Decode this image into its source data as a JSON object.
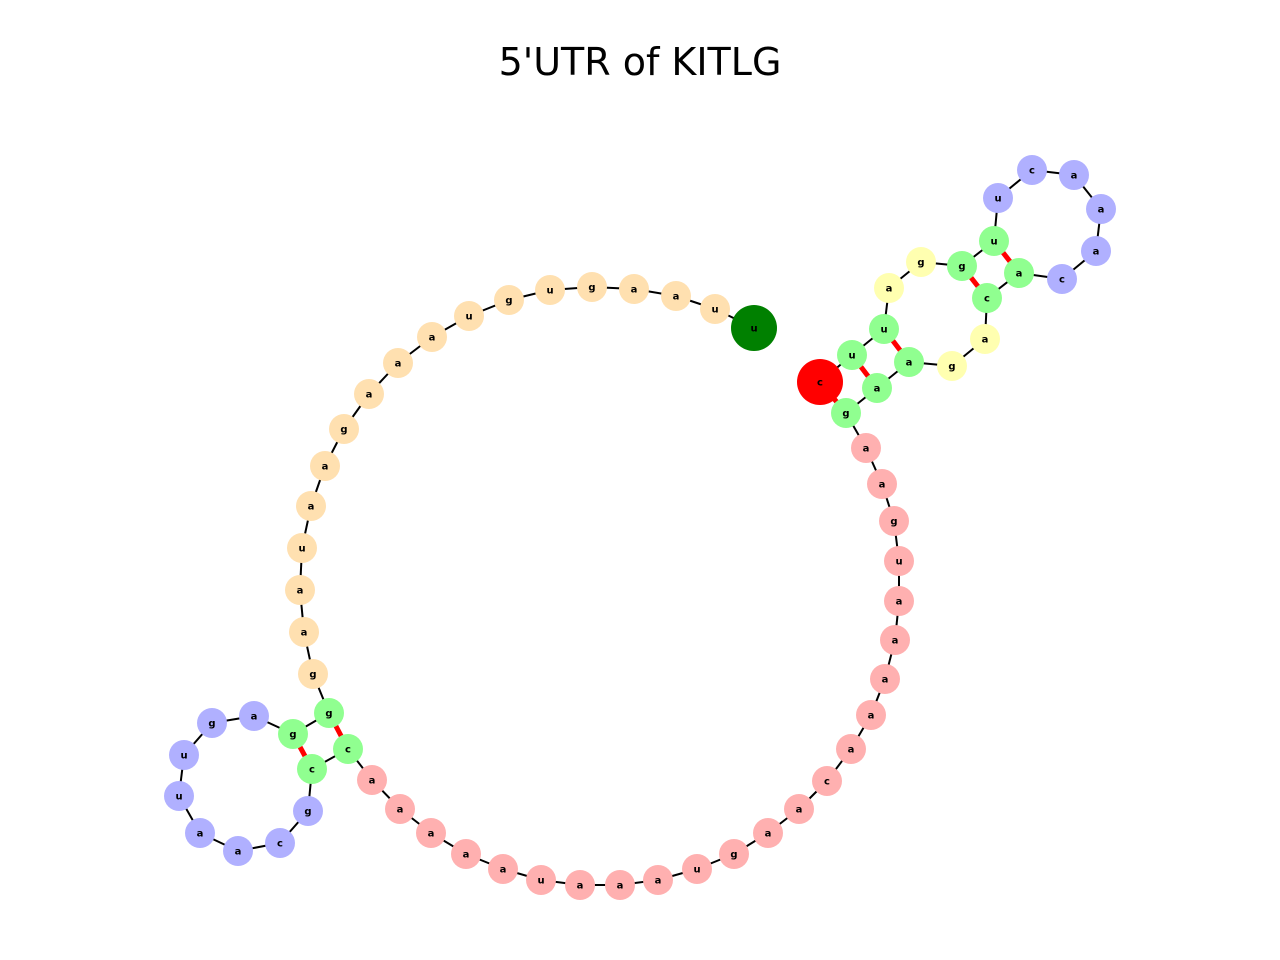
{
  "title": "5'UTR of KITLG",
  "colors": {
    "single_stranded": "#ffe0b0",
    "exterior": "#ffb0b0",
    "stem": "#90ff90",
    "hairpin_loop": "#b0b0ff",
    "interior_loop": "#ffffb0",
    "start_marker": "#008000",
    "end_marker": "#ff0000",
    "backbone": "#000000",
    "base_pair": "#ff0000"
  },
  "nucleotides": [
    {
      "base": "u",
      "role": "start"
    },
    {
      "base": "u",
      "role": "single_stranded"
    },
    {
      "base": "a",
      "role": "single_stranded"
    },
    {
      "base": "a",
      "role": "single_stranded"
    },
    {
      "base": "g",
      "role": "single_stranded"
    },
    {
      "base": "u",
      "role": "single_stranded"
    },
    {
      "base": "g",
      "role": "single_stranded"
    },
    {
      "base": "u",
      "role": "single_stranded"
    },
    {
      "base": "a",
      "role": "single_stranded"
    },
    {
      "base": "a",
      "role": "single_stranded"
    },
    {
      "base": "a",
      "role": "single_stranded"
    },
    {
      "base": "g",
      "role": "single_stranded"
    },
    {
      "base": "a",
      "role": "single_stranded"
    },
    {
      "base": "a",
      "role": "single_stranded"
    },
    {
      "base": "u",
      "role": "single_stranded"
    },
    {
      "base": "a",
      "role": "single_stranded"
    },
    {
      "base": "a",
      "role": "single_stranded"
    },
    {
      "base": "g",
      "role": "single_stranded"
    },
    {
      "base": "g",
      "role": "stem"
    },
    {
      "base": "g",
      "role": "stem"
    },
    {
      "base": "a",
      "role": "hairpin_loop"
    },
    {
      "base": "g",
      "role": "hairpin_loop"
    },
    {
      "base": "u",
      "role": "hairpin_loop"
    },
    {
      "base": "u",
      "role": "hairpin_loop"
    },
    {
      "base": "a",
      "role": "hairpin_loop"
    },
    {
      "base": "a",
      "role": "hairpin_loop"
    },
    {
      "base": "c",
      "role": "hairpin_loop"
    },
    {
      "base": "g",
      "role": "hairpin_loop"
    },
    {
      "base": "c",
      "role": "stem"
    },
    {
      "base": "c",
      "role": "stem"
    },
    {
      "base": "a",
      "role": "exterior"
    },
    {
      "base": "a",
      "role": "exterior"
    },
    {
      "base": "a",
      "role": "exterior"
    },
    {
      "base": "a",
      "role": "exterior"
    },
    {
      "base": "a",
      "role": "exterior"
    },
    {
      "base": "u",
      "role": "exterior"
    },
    {
      "base": "a",
      "role": "exterior"
    },
    {
      "base": "a",
      "role": "exterior"
    },
    {
      "base": "a",
      "role": "exterior"
    },
    {
      "base": "u",
      "role": "exterior"
    },
    {
      "base": "g",
      "role": "exterior"
    },
    {
      "base": "a",
      "role": "exterior"
    },
    {
      "base": "a",
      "role": "exterior"
    },
    {
      "base": "c",
      "role": "exterior"
    },
    {
      "base": "a",
      "role": "exterior"
    },
    {
      "base": "a",
      "role": "exterior"
    },
    {
      "base": "a",
      "role": "exterior"
    },
    {
      "base": "a",
      "role": "exterior"
    },
    {
      "base": "a",
      "role": "exterior"
    },
    {
      "base": "u",
      "role": "exterior"
    },
    {
      "base": "g",
      "role": "exterior"
    },
    {
      "base": "a",
      "role": "exterior"
    },
    {
      "base": "a",
      "role": "exterior"
    },
    {
      "base": "g",
      "role": "stem"
    },
    {
      "base": "a",
      "role": "stem"
    },
    {
      "base": "a",
      "role": "stem"
    },
    {
      "base": "g",
      "role": "interior_loop"
    },
    {
      "base": "a",
      "role": "interior_loop"
    },
    {
      "base": "c",
      "role": "stem"
    },
    {
      "base": "a",
      "role": "stem"
    },
    {
      "base": "c",
      "role": "hairpin_loop"
    },
    {
      "base": "a",
      "role": "hairpin_loop"
    },
    {
      "base": "a",
      "role": "hairpin_loop"
    },
    {
      "base": "a",
      "role": "hairpin_loop"
    },
    {
      "base": "c",
      "role": "hairpin_loop"
    },
    {
      "base": "u",
      "role": "hairpin_loop"
    },
    {
      "base": "u",
      "role": "stem"
    },
    {
      "base": "g",
      "role": "stem"
    },
    {
      "base": "g",
      "role": "interior_loop"
    },
    {
      "base": "a",
      "role": "interior_loop"
    },
    {
      "base": "u",
      "role": "stem"
    },
    {
      "base": "u",
      "role": "stem"
    },
    {
      "base": "c",
      "role": "end"
    }
  ],
  "base_pairs": [
    [
      18,
      29
    ],
    [
      19,
      28
    ],
    [
      53,
      72
    ],
    [
      54,
      71
    ],
    [
      55,
      70
    ],
    [
      58,
      67
    ],
    [
      59,
      66
    ]
  ]
}
